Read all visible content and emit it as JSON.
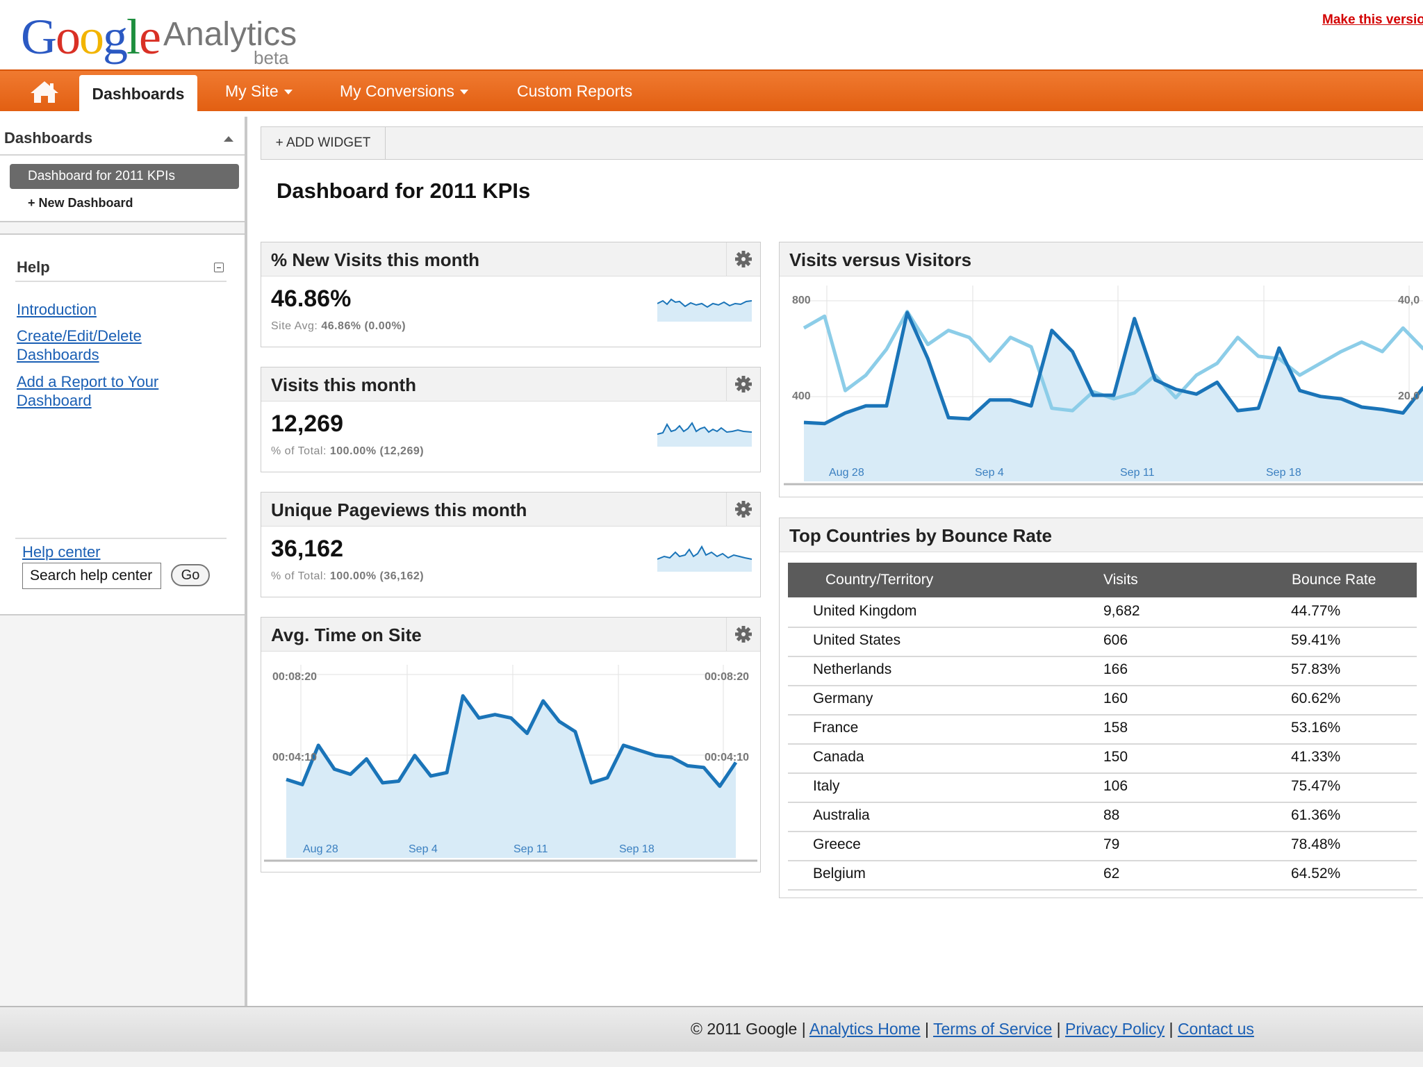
{
  "header": {
    "logo_google": "Google",
    "logo_product": "Analytics",
    "logo_beta": "beta",
    "make_version_link": "Make this version"
  },
  "nav": {
    "home_icon": "home-icon",
    "items": [
      {
        "label": "Dashboards",
        "active": true
      },
      {
        "label": "My Site",
        "dropdown": true
      },
      {
        "label": "My Conversions",
        "dropdown": true
      },
      {
        "label": "Custom Reports"
      }
    ]
  },
  "sidebar": {
    "dashboards_title": "Dashboards",
    "current_dashboard": "Dashboard for 2011 KPIs",
    "new_dashboard": "+ New Dashboard",
    "help": {
      "title": "Help",
      "links": [
        "Introduction",
        "Create/Edit/Delete Dashboards",
        "Add a Report to Your Dashboard"
      ],
      "help_center": "Help center",
      "search_value": "Search help center",
      "go_label": "Go"
    }
  },
  "main": {
    "add_widget": "+ ADD WIDGET",
    "title": "Dashboard for 2011 KPIs",
    "kpis": [
      {
        "title": "% New Visits this month",
        "value": "46.86%",
        "sub_label": "Site Avg:",
        "sub_value": "46.86% (0.00%)"
      },
      {
        "title": "Visits this month",
        "value": "12,269",
        "sub_label": "% of Total:",
        "sub_value": "100.00% (12,269)"
      },
      {
        "title": "Unique Pageviews this month",
        "value": "36,162",
        "sub_label": "% of Total:",
        "sub_value": "100.00% (36,162)"
      }
    ],
    "avg_time": {
      "title": "Avg. Time on Site",
      "y_top": "00:08:20",
      "y_mid": "00:04:10",
      "x_labels": [
        "Aug 28",
        "Sep 4",
        "Sep 11",
        "Sep 18"
      ]
    },
    "visits_visitors": {
      "title": "Visits versus Visitors",
      "y_left": [
        "800",
        "400"
      ],
      "y_right": [
        "40,0",
        "20,0"
      ],
      "x_labels": [
        "Aug 28",
        "Sep 4",
        "Sep 11",
        "Sep 18"
      ]
    },
    "countries": {
      "title": "Top Countries by Bounce Rate",
      "headers": [
        "Country/Territory",
        "Visits",
        "Bounce Rate"
      ],
      "rows": [
        [
          "United Kingdom",
          "9,682",
          "44.77%"
        ],
        [
          "United States",
          "606",
          "59.41%"
        ],
        [
          "Netherlands",
          "166",
          "57.83%"
        ],
        [
          "Germany",
          "160",
          "60.62%"
        ],
        [
          "France",
          "158",
          "53.16%"
        ],
        [
          "Canada",
          "150",
          "41.33%"
        ],
        [
          "Italy",
          "106",
          "75.47%"
        ],
        [
          "Australia",
          "88",
          "61.36%"
        ],
        [
          "Greece",
          "79",
          "78.48%"
        ],
        [
          "Belgium",
          "62",
          "64.52%"
        ]
      ]
    }
  },
  "chart_data": [
    {
      "type": "area",
      "title": "Avg. Time on Site",
      "y_ticks": [
        "00:04:10",
        "00:08:20"
      ],
      "x_ticks": [
        "Aug 28",
        "Sep 4",
        "Sep 11",
        "Sep 18"
      ],
      "ylim_seconds": [
        0,
        570
      ],
      "series": [
        {
          "values": [
            230,
            215,
            330,
            260,
            245,
            290,
            220,
            225,
            300,
            240,
            250,
            475,
            410,
            420,
            410,
            365,
            460,
            400,
            370,
            220,
            235,
            330,
            315,
            300,
            295,
            270,
            265,
            210,
            280
          ]
        }
      ],
      "colors": {
        "line": "#1a74b8",
        "fill": "#d8ebf7"
      }
    },
    {
      "type": "area",
      "title": "Visits versus Visitors",
      "y_ticks_left": [
        "400",
        "800"
      ],
      "y_ticks_right": [
        "20,0",
        "40,0"
      ],
      "x_ticks": [
        "Aug 28",
        "Sep 4",
        "Sep 11",
        "Sep 18"
      ],
      "ylim": [
        0,
        830
      ],
      "series": [
        {
          "values": [
            250,
            245,
            290,
            320,
            320,
            715,
            520,
            270,
            265,
            345,
            345,
            320,
            640,
            550,
            365,
            365,
            690,
            430,
            390,
            370,
            420,
            300,
            310,
            565,
            385,
            360,
            350,
            315,
            305,
            290,
            400
          ]
        },
        {
          "values": [
            650,
            700,
            385,
            450,
            560,
            720,
            580,
            640,
            610,
            510,
            610,
            570,
            310,
            300,
            380,
            350,
            375,
            450,
            355,
            450,
            500,
            610,
            530,
            520,
            450,
            500,
            550,
            590,
            550,
            650,
            560
          ]
        }
      ],
      "colors": {
        "dark": "#1a74b8",
        "light": "#8ccde8",
        "fill": "#d8ebf7"
      }
    }
  ]
}
